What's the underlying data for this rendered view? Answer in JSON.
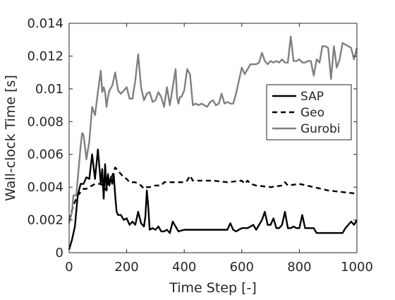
{
  "chart_data": {
    "type": "line",
    "title": "",
    "xlabel": "Time Step [-]",
    "ylabel": "Wall-clock Time [s]",
    "xlim": [
      0,
      1000
    ],
    "ylim": [
      0,
      0.014
    ],
    "x_ticks": [
      0,
      200,
      400,
      600,
      800,
      1000
    ],
    "x_tick_labels": [
      "0",
      "200",
      "400",
      "600",
      "800",
      "1000"
    ],
    "y_ticks": [
      0,
      0.002,
      0.004,
      0.006,
      0.008,
      0.01,
      0.012,
      0.014
    ],
    "y_tick_labels": [
      "0",
      "0.002",
      "0.004",
      "0.006",
      "0.008",
      "0.01",
      "0.012",
      "0.014"
    ],
    "grid": false,
    "legend_position": "right",
    "series": [
      {
        "name": "SAP",
        "color": "#000000",
        "dash": "solid",
        "x": [
          0,
          10,
          20,
          30,
          40,
          50,
          60,
          70,
          80,
          90,
          100,
          110,
          115,
          120,
          125,
          130,
          135,
          140,
          145,
          150,
          155,
          160,
          165,
          170,
          180,
          190,
          200,
          210,
          220,
          230,
          240,
          250,
          260,
          265,
          270,
          275,
          280,
          290,
          300,
          310,
          320,
          330,
          340,
          350,
          360,
          380,
          400,
          450,
          500,
          550,
          560,
          570,
          580,
          600,
          620,
          640,
          650,
          660,
          670,
          680,
          690,
          700,
          710,
          720,
          730,
          740,
          750,
          760,
          770,
          780,
          790,
          800,
          810,
          820,
          830,
          840,
          850,
          860,
          870,
          880,
          900,
          950,
          960,
          970,
          980,
          990,
          1000
        ],
        "y": [
          0.0002,
          0.0008,
          0.0016,
          0.0035,
          0.0042,
          0.0042,
          0.0046,
          0.0045,
          0.006,
          0.0045,
          0.0063,
          0.0042,
          0.0051,
          0.0033,
          0.0054,
          0.0039,
          0.0048,
          0.0041,
          0.0046,
          0.0042,
          0.0048,
          0.0035,
          0.0025,
          0.0023,
          0.0023,
          0.002,
          0.0021,
          0.0017,
          0.0019,
          0.0017,
          0.0025,
          0.0018,
          0.0016,
          0.0022,
          0.0038,
          0.0028,
          0.0014,
          0.0015,
          0.0014,
          0.0016,
          0.0013,
          0.0013,
          0.0014,
          0.0012,
          0.0019,
          0.0013,
          0.0014,
          0.0014,
          0.0014,
          0.0014,
          0.0018,
          0.0014,
          0.0013,
          0.0015,
          0.0015,
          0.0017,
          0.0014,
          0.0017,
          0.002,
          0.0025,
          0.0017,
          0.0017,
          0.0021,
          0.0015,
          0.0015,
          0.0017,
          0.0025,
          0.0015,
          0.0015,
          0.0016,
          0.0015,
          0.0015,
          0.0023,
          0.0015,
          0.0015,
          0.0015,
          0.0015,
          0.0012,
          0.0012,
          0.0012,
          0.0012,
          0.0012,
          0.0015,
          0.0017,
          0.0019,
          0.0017,
          0.002
        ]
      },
      {
        "name": "Geo",
        "color": "#000000",
        "dash": "dashed",
        "x": [
          0,
          10,
          20,
          30,
          40,
          50,
          60,
          70,
          80,
          90,
          100,
          110,
          120,
          130,
          140,
          150,
          160,
          170,
          180,
          190,
          200,
          210,
          230,
          250,
          260,
          270,
          280,
          300,
          320,
          330,
          340,
          350,
          360,
          380,
          400,
          410,
          420,
          430,
          450,
          500,
          550,
          600,
          610,
          620,
          630,
          650,
          700,
          740,
          750,
          760,
          800,
          850,
          900,
          950,
          1000
        ],
        "y": [
          0.002,
          0.0026,
          0.0031,
          0.0035,
          0.0037,
          0.0039,
          0.0039,
          0.004,
          0.0041,
          0.0042,
          0.0042,
          0.0042,
          0.004,
          0.0038,
          0.0045,
          0.0047,
          0.0052,
          0.005,
          0.0048,
          0.0046,
          0.0045,
          0.0043,
          0.0043,
          0.0041,
          0.0039,
          0.004,
          0.004,
          0.0041,
          0.0041,
          0.0043,
          0.0043,
          0.0043,
          0.0043,
          0.0043,
          0.0043,
          0.0044,
          0.0047,
          0.0044,
          0.0044,
          0.0044,
          0.0043,
          0.0044,
          0.0042,
          0.0044,
          0.0042,
          0.0041,
          0.004,
          0.0041,
          0.0043,
          0.0041,
          0.0042,
          0.004,
          0.0038,
          0.0037,
          0.0036
        ]
      },
      {
        "name": "Gurobi",
        "color": "#808080",
        "dash": "solid",
        "x": [
          0,
          10,
          15,
          20,
          25,
          30,
          35,
          40,
          45,
          50,
          55,
          60,
          70,
          80,
          90,
          100,
          110,
          115,
          120,
          125,
          130,
          135,
          140,
          150,
          160,
          170,
          180,
          190,
          200,
          210,
          220,
          230,
          240,
          250,
          260,
          270,
          280,
          290,
          300,
          310,
          320,
          330,
          340,
          350,
          360,
          370,
          375,
          380,
          385,
          390,
          400,
          410,
          420,
          430,
          440,
          450,
          460,
          470,
          480,
          490,
          500,
          510,
          520,
          530,
          540,
          550,
          560,
          570,
          580,
          600,
          610,
          620,
          630,
          640,
          650,
          660,
          670,
          680,
          690,
          700,
          710,
          720,
          730,
          740,
          750,
          760,
          770,
          780,
          790,
          800,
          810,
          820,
          830,
          840,
          850,
          860,
          870,
          880,
          890,
          900,
          910,
          920,
          930,
          940,
          950,
          960,
          970,
          980,
          990,
          1000
        ],
        "y": [
          0.0018,
          0.0025,
          0.0035,
          0.0035,
          0.0035,
          0.0045,
          0.0055,
          0.0065,
          0.0073,
          0.0072,
          0.0065,
          0.0057,
          0.0068,
          0.0089,
          0.0084,
          0.0098,
          0.0111,
          0.0098,
          0.0101,
          0.0098,
          0.0089,
          0.0095,
          0.0099,
          0.0102,
          0.011,
          0.0099,
          0.0097,
          0.0099,
          0.0101,
          0.0094,
          0.0094,
          0.0105,
          0.0121,
          0.0101,
          0.0093,
          0.0097,
          0.0098,
          0.0092,
          0.0093,
          0.0098,
          0.0095,
          0.0089,
          0.0101,
          0.009,
          0.0101,
          0.0112,
          0.0095,
          0.0091,
          0.0095,
          0.0095,
          0.0099,
          0.0112,
          0.0109,
          0.009,
          0.0091,
          0.009,
          0.0091,
          0.009,
          0.0089,
          0.0092,
          0.0093,
          0.009,
          0.0091,
          0.0097,
          0.0091,
          0.0092,
          0.0091,
          0.0091,
          0.0097,
          0.0113,
          0.0109,
          0.0112,
          0.0115,
          0.0115,
          0.0115,
          0.0116,
          0.0122,
          0.0117,
          0.0115,
          0.0117,
          0.0116,
          0.0117,
          0.0116,
          0.0118,
          0.0116,
          0.0116,
          0.0132,
          0.0117,
          0.0117,
          0.0118,
          0.0116,
          0.0116,
          0.0117,
          0.0117,
          0.0108,
          0.0118,
          0.0116,
          0.0126,
          0.0126,
          0.0125,
          0.0106,
          0.0126,
          0.0113,
          0.0118,
          0.0128,
          0.0127,
          0.0126,
          0.0125,
          0.0118,
          0.0125
        ]
      }
    ]
  }
}
